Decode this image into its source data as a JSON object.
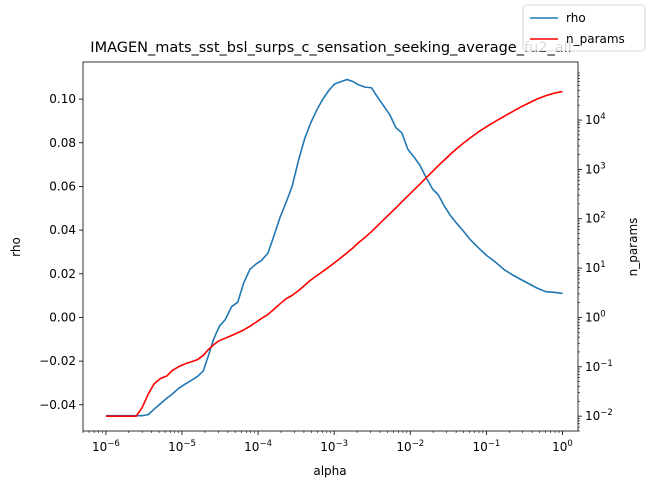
{
  "chart_data": {
    "type": "line",
    "title": "IMAGEN_mats_sst_bsl_surps_c_sensation_seeking_average_fu2_all",
    "xlabel": "alpha",
    "ylabel": "rho",
    "y2label": "n_params",
    "xscale": "log",
    "y2scale": "log",
    "xlim": [
      5e-07,
      1.6
    ],
    "ylim": [
      -0.052,
      0.117
    ],
    "y2lim": [
      0.005,
      150000
    ],
    "x_ticks": [
      {
        "v": 1e-06,
        "base": "10",
        "exp": "−6"
      },
      {
        "v": 1e-05,
        "base": "10",
        "exp": "−5"
      },
      {
        "v": 0.0001,
        "base": "10",
        "exp": "−4"
      },
      {
        "v": 0.001,
        "base": "10",
        "exp": "−3"
      },
      {
        "v": 0.01,
        "base": "10",
        "exp": "−2"
      },
      {
        "v": 0.1,
        "base": "10",
        "exp": "−1"
      },
      {
        "v": 1,
        "base": "10",
        "exp": "0"
      }
    ],
    "y_ticks": [
      {
        "v": -0.04,
        "label": "−0.04"
      },
      {
        "v": -0.02,
        "label": "−0.02"
      },
      {
        "v": 0.0,
        "label": "0.00"
      },
      {
        "v": 0.02,
        "label": "0.02"
      },
      {
        "v": 0.04,
        "label": "0.04"
      },
      {
        "v": 0.06,
        "label": "0.06"
      },
      {
        "v": 0.08,
        "label": "0.08"
      },
      {
        "v": 0.1,
        "label": "0.10"
      }
    ],
    "y2_ticks": [
      {
        "v": 0.01,
        "base": "10",
        "exp": "−2"
      },
      {
        "v": 0.1,
        "base": "10",
        "exp": "−1"
      },
      {
        "v": 1,
        "base": "10",
        "exp": "0"
      },
      {
        "v": 10,
        "base": "10",
        "exp": "1"
      },
      {
        "v": 100,
        "base": "10",
        "exp": "2"
      },
      {
        "v": 1000,
        "base": "10",
        "exp": "3"
      },
      {
        "v": 10000,
        "base": "10",
        "exp": "4"
      }
    ],
    "legend_position": "top-right",
    "series": [
      {
        "name": "rho",
        "color": "#1f77b4",
        "axis": "left",
        "x": [
          1e-06,
          1.3e-06,
          1.6e-06,
          2e-06,
          2.5e-06,
          3e-06,
          3.6e-06,
          4.3e-06,
          5.2e-06,
          6.3e-06,
          7.5e-06,
          9e-06,
          1.1e-05,
          1.3e-05,
          1.6e-05,
          1.9e-05,
          2.2e-05,
          2.6e-05,
          3.1e-05,
          3.7e-05,
          4.5e-05,
          5.4e-05,
          6.5e-05,
          7.8e-05,
          9.4e-05,
          0.00011,
          0.000135,
          0.00016,
          0.000195,
          0.000235,
          0.00028,
          0.00034,
          0.00041,
          0.00049,
          0.00059,
          0.00071,
          0.00085,
          0.00102,
          0.00123,
          0.00148,
          0.00178,
          0.0021,
          0.00255,
          0.0031,
          0.0037,
          0.00445,
          0.00535,
          0.00645,
          0.00775,
          0.0093,
          0.0112,
          0.0135,
          0.0162,
          0.0195,
          0.0235,
          0.028,
          0.034,
          0.041,
          0.05,
          0.062,
          0.078,
          0.1,
          0.13,
          0.17,
          0.22,
          0.28,
          0.36,
          0.46,
          0.6,
          0.78,
          1.0
        ],
        "y": [
          -0.045,
          -0.045,
          -0.045,
          -0.045,
          -0.045,
          -0.045,
          -0.0445,
          -0.042,
          -0.0395,
          -0.037,
          -0.035,
          -0.0325,
          -0.0305,
          -0.029,
          -0.027,
          -0.0245,
          -0.018,
          -0.01,
          -0.004,
          -0.001,
          0.005,
          0.007,
          0.016,
          0.022,
          0.0245,
          0.026,
          0.0295,
          0.037,
          0.046,
          0.053,
          0.06,
          0.072,
          0.082,
          0.089,
          0.095,
          0.1,
          0.104,
          0.107,
          0.108,
          0.109,
          0.108,
          0.1065,
          0.1055,
          0.1052,
          0.101,
          0.097,
          0.093,
          0.087,
          0.0845,
          0.077,
          0.0735,
          0.0695,
          0.064,
          0.059,
          0.056,
          0.051,
          0.0465,
          0.043,
          0.0395,
          0.0355,
          0.032,
          0.0285,
          0.0255,
          0.022,
          0.0195,
          0.0175,
          0.0155,
          0.0135,
          0.0118,
          0.0115,
          0.011
        ]
      },
      {
        "name": "n_params",
        "color": "#ff0000",
        "axis": "right",
        "x": [
          1e-06,
          1.3e-06,
          1.6e-06,
          2e-06,
          2.5e-06,
          3e-06,
          3.6e-06,
          4.3e-06,
          5.2e-06,
          6.3e-06,
          7.5e-06,
          9e-06,
          1.1e-05,
          1.3e-05,
          1.6e-05,
          1.9e-05,
          2.2e-05,
          2.6e-05,
          3.1e-05,
          3.7e-05,
          4.5e-05,
          5.4e-05,
          6.5e-05,
          7.8e-05,
          9.4e-05,
          0.00011,
          0.000135,
          0.00016,
          0.000195,
          0.000235,
          0.00028,
          0.00034,
          0.00041,
          0.00049,
          0.00059,
          0.00071,
          0.00085,
          0.00102,
          0.00123,
          0.00148,
          0.00178,
          0.0021,
          0.00255,
          0.0031,
          0.0037,
          0.00445,
          0.00535,
          0.00645,
          0.00775,
          0.0093,
          0.0112,
          0.0135,
          0.0162,
          0.0195,
          0.0235,
          0.028,
          0.034,
          0.041,
          0.05,
          0.062,
          0.078,
          0.1,
          0.13,
          0.17,
          0.22,
          0.28,
          0.36,
          0.46,
          0.6,
          0.78,
          1.0
        ],
        "y": [
          0.01,
          0.01,
          0.01,
          0.01,
          0.01,
          0.015,
          0.028,
          0.045,
          0.058,
          0.065,
          0.085,
          0.1,
          0.115,
          0.125,
          0.14,
          0.17,
          0.22,
          0.28,
          0.34,
          0.38,
          0.43,
          0.49,
          0.56,
          0.66,
          0.8,
          0.95,
          1.15,
          1.45,
          1.9,
          2.4,
          2.8,
          3.5,
          4.5,
          5.7,
          7.0,
          8.6,
          10.5,
          13.0,
          16.3,
          20.5,
          26.0,
          33.0,
          42.0,
          55.0,
          72.0,
          95.0,
          125.0,
          165.0,
          220.0,
          290.0,
          385.0,
          510.0,
          680.0,
          900.0,
          1200.0,
          1550.0,
          2050.0,
          2650.0,
          3400.0,
          4400.0,
          5700.0,
          7300.0,
          9300.0,
          11800.0,
          14800.0,
          18200.0,
          22000.0,
          26500.0,
          31000.0,
          35000.0,
          38000.0
        ]
      }
    ]
  }
}
